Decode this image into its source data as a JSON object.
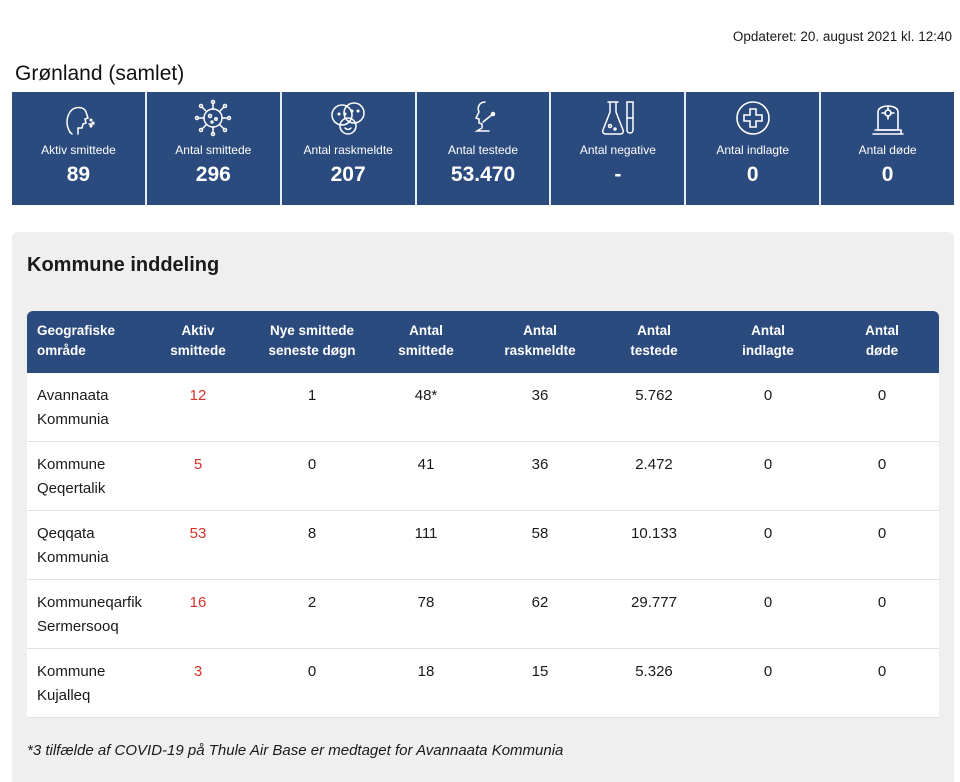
{
  "updated": "Opdateret: 20. august 2021 kl. 12:40",
  "region_title": "Grønland (samlet)",
  "accent_color": "#2b4a7d",
  "stats": [
    {
      "icon": "coughing-person-icon",
      "label": "Aktiv smittede",
      "value": "89"
    },
    {
      "icon": "virus-icon",
      "label": "Antal smittede",
      "value": "296"
    },
    {
      "icon": "recovered-faces-icon",
      "label": "Antal raskmeldte",
      "value": "207"
    },
    {
      "icon": "swab-test-icon",
      "label": "Antal testede",
      "value": "53.470"
    },
    {
      "icon": "lab-flask-icon",
      "label": "Antal negative",
      "value": "-"
    },
    {
      "icon": "hospital-cross-icon",
      "label": "Antal indlagte",
      "value": "0"
    },
    {
      "icon": "gravestone-icon",
      "label": "Antal døde",
      "value": "0"
    }
  ],
  "panel": {
    "title": "Kommune inddeling",
    "headers": [
      [
        "Geografiske",
        "område"
      ],
      [
        "Aktiv",
        "smittede"
      ],
      [
        "Nye smittede",
        "seneste døgn"
      ],
      [
        "Antal",
        "smittede"
      ],
      [
        "Antal",
        "raskmeldte"
      ],
      [
        "Antal",
        "testede"
      ],
      [
        "Antal",
        "indlagte"
      ],
      [
        "Antal",
        "døde"
      ]
    ],
    "rows": [
      {
        "area": [
          "Avannaata",
          "Kommunia"
        ],
        "active": "12",
        "new": "1",
        "infected": "48*",
        "recovered": "36",
        "tested": "5.762",
        "hospitalized": "0",
        "dead": "0"
      },
      {
        "area": [
          "Kommune",
          "Qeqertalik"
        ],
        "active": "5",
        "new": "0",
        "infected": "41",
        "recovered": "36",
        "tested": "2.472",
        "hospitalized": "0",
        "dead": "0"
      },
      {
        "area": [
          "Qeqqata",
          "Kommunia"
        ],
        "active": "53",
        "new": "8",
        "infected": "111",
        "recovered": "58",
        "tested": "10.133",
        "hospitalized": "0",
        "dead": "0"
      },
      {
        "area": [
          "Kommuneqarfik",
          "Sermersooq"
        ],
        "active": "16",
        "new": "2",
        "infected": "78",
        "recovered": "62",
        "tested": "29.777",
        "hospitalized": "0",
        "dead": "0"
      },
      {
        "area": [
          "Kommune",
          "Kujalleq"
        ],
        "active": "3",
        "new": "0",
        "infected": "18",
        "recovered": "15",
        "tested": "5.326",
        "hospitalized": "0",
        "dead": "0"
      }
    ],
    "footnote": "*3 tilfælde af COVID-19 på Thule Air Base er medtaget for Avannaata Kommunia"
  }
}
